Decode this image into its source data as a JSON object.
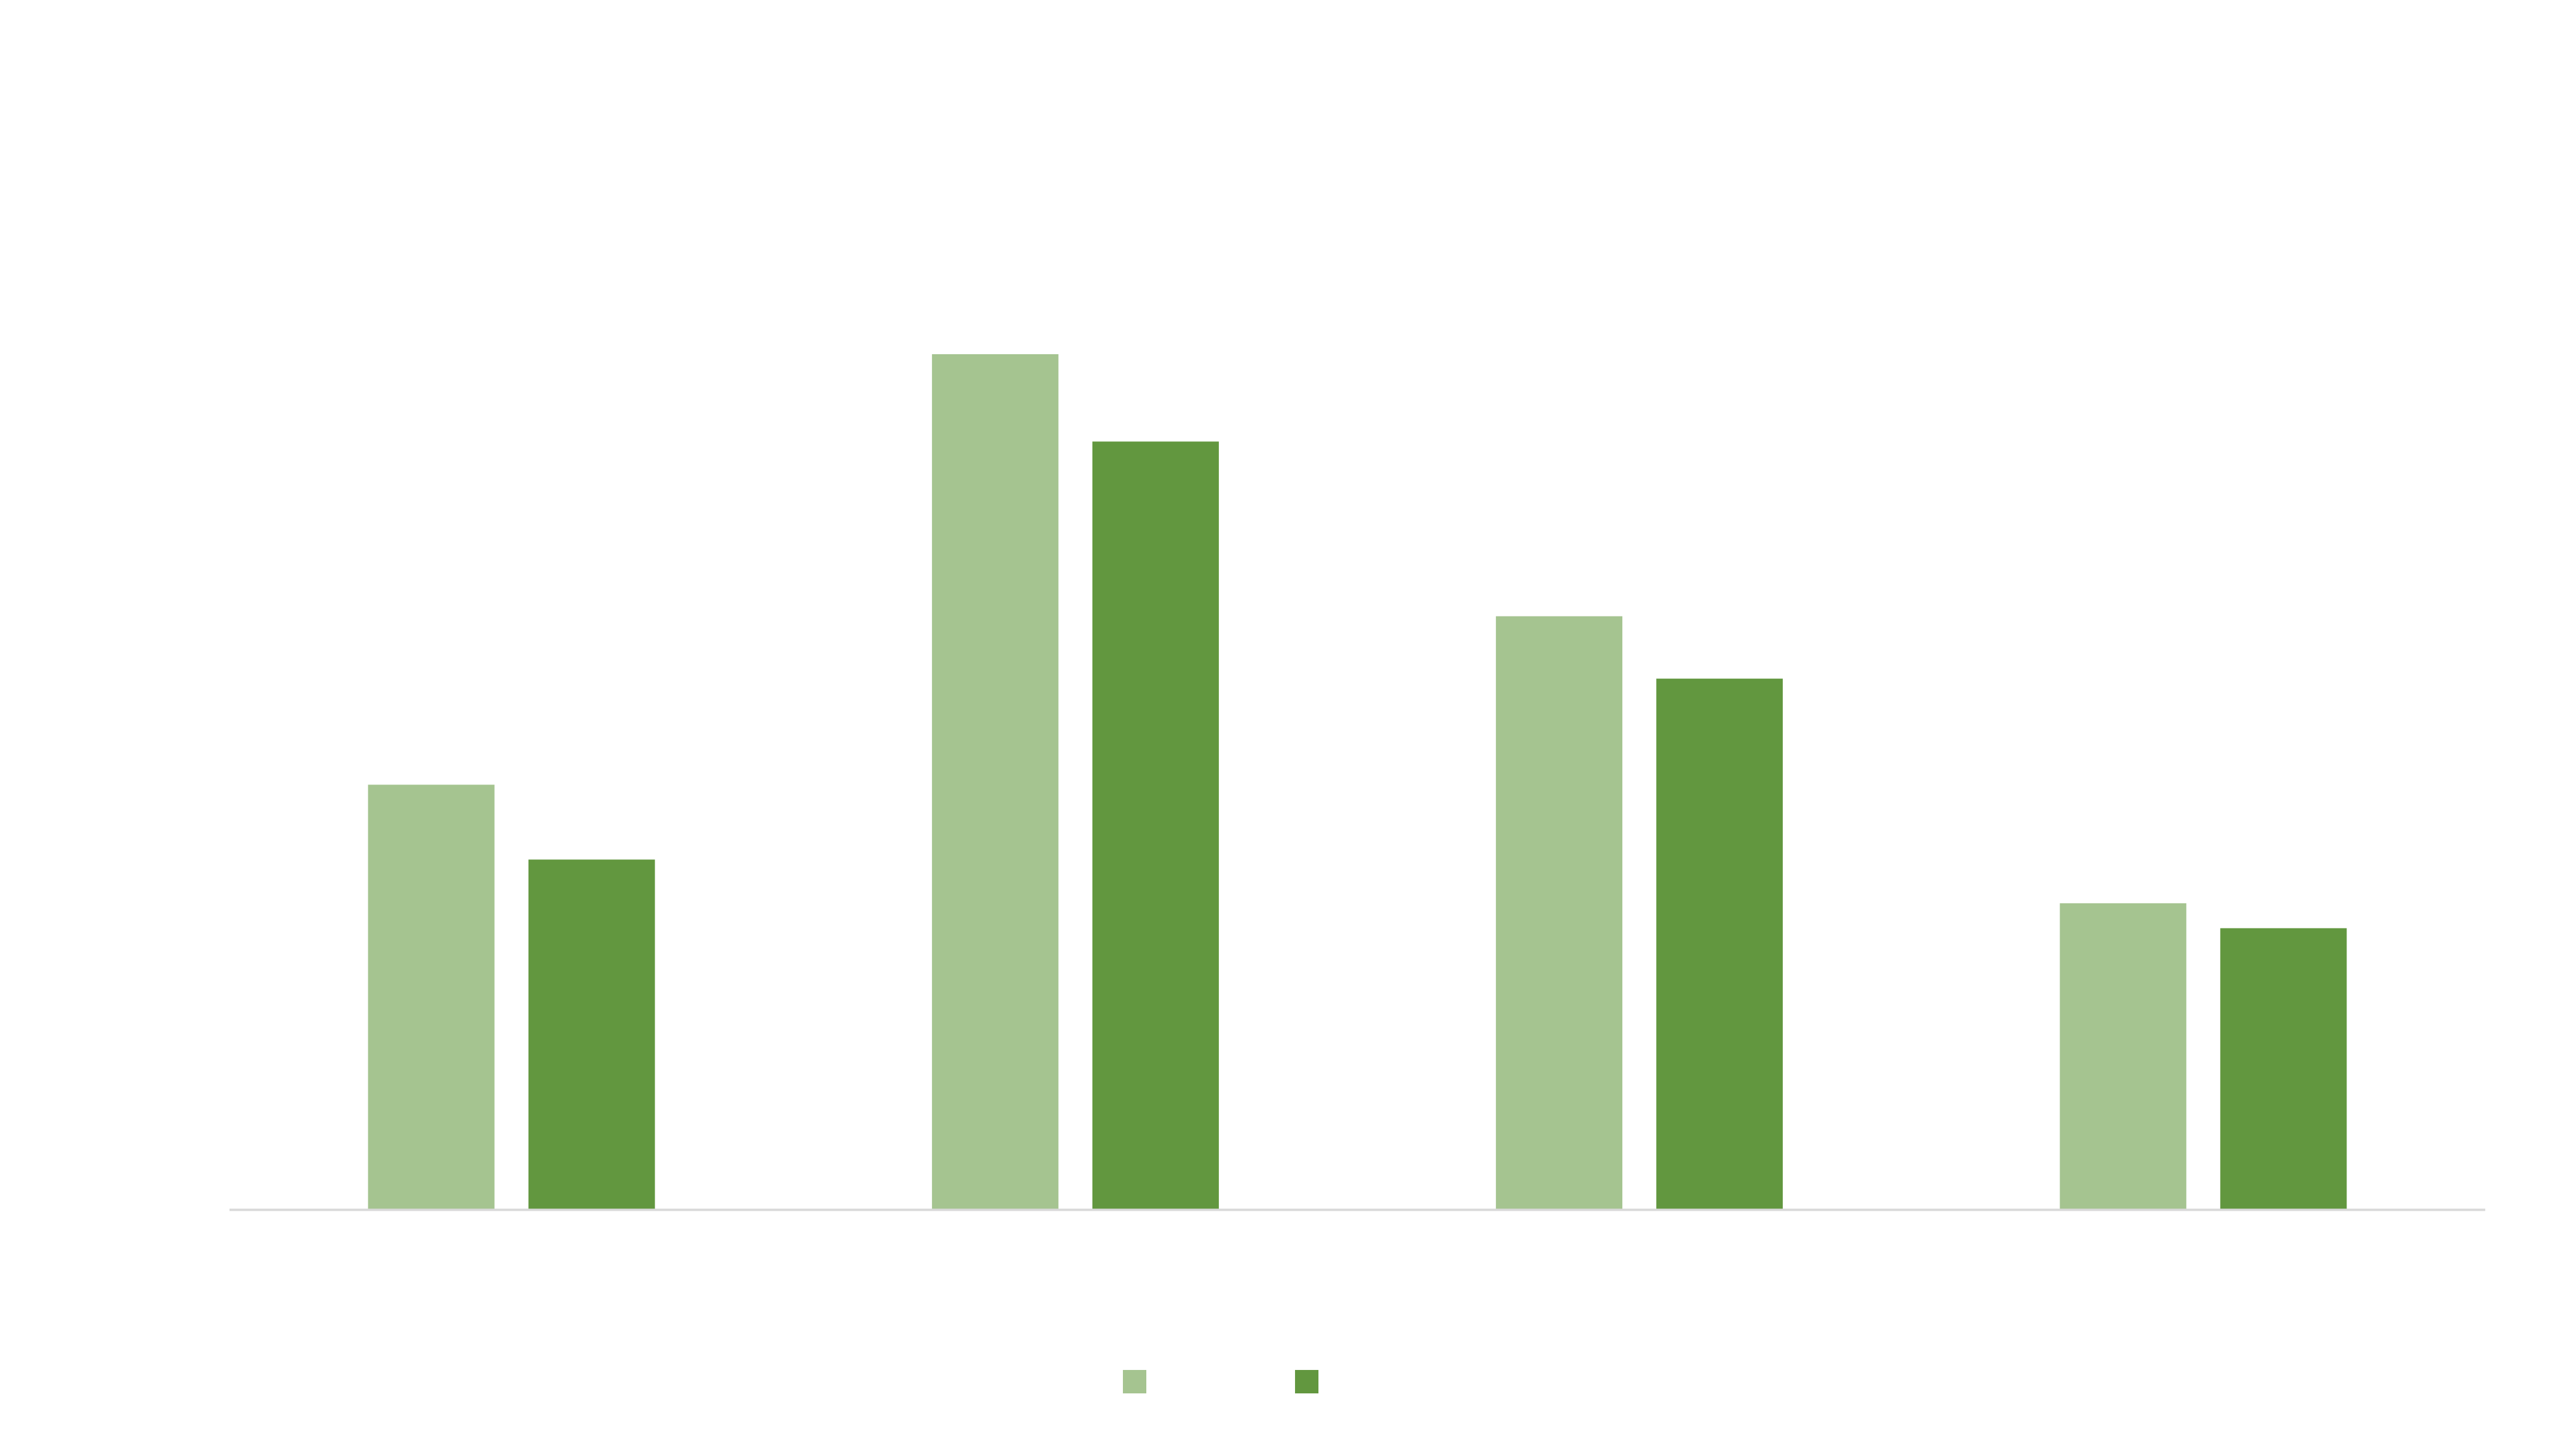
{
  "chart_data": {
    "type": "bar",
    "title": "",
    "xlabel": "",
    "ylabel": "",
    "categories": [
      "",
      "",
      "",
      ""
    ],
    "series": [
      {
        "values": [
          68,
          137,
          95,
          49
        ],
        "color": "#a5c490"
      },
      {
        "values": [
          56,
          123,
          85,
          45
        ],
        "color": "#62973f"
      }
    ],
    "ylim": [
      0,
      160
    ],
    "grid": false,
    "legend": {
      "position": "bottom"
    },
    "axis_color": "#d9d9d9"
  }
}
